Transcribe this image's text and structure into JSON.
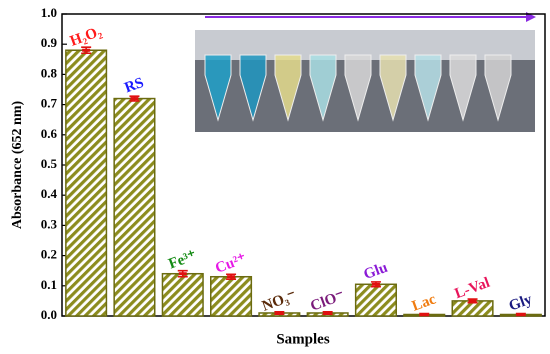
{
  "chart_data": {
    "type": "bar",
    "y_label": "Absorbance (652 nm)",
    "x_label": "Samples",
    "categories": [
      "H₂O₂",
      "RS",
      "Fe³⁺",
      "Cu²⁺",
      "NO₃⁻",
      "ClO⁻",
      "Glu",
      "Lac",
      "L-Val",
      "Gly"
    ],
    "category_colors": [
      "#ff1a1a",
      "#1a1aff",
      "#138a13",
      "#e619e6",
      "#5a2a0a",
      "#7a1a7a",
      "#8a1ad6",
      "#f07c10",
      "#e8145a",
      "#1a1a80"
    ],
    "values": [
      0.88,
      0.72,
      0.14,
      0.13,
      0.01,
      0.01,
      0.105,
      0.005,
      0.05,
      0.005
    ],
    "errors": [
      0.01,
      0.008,
      0.01,
      0.008,
      0.004,
      0.004,
      0.008,
      0.003,
      0.006,
      0.003
    ],
    "color": "#8c8c1e",
    "error_color": "#e01010",
    "ylim": [
      0,
      1
    ],
    "yticks": [
      {
        "value": 0,
        "label": "0.0"
      },
      0.1,
      0.2,
      0.3,
      0.4,
      0.5,
      0.6,
      0.7,
      0.8,
      0.9,
      {
        "value": 1,
        "label": "1.0"
      }
    ]
  }
}
